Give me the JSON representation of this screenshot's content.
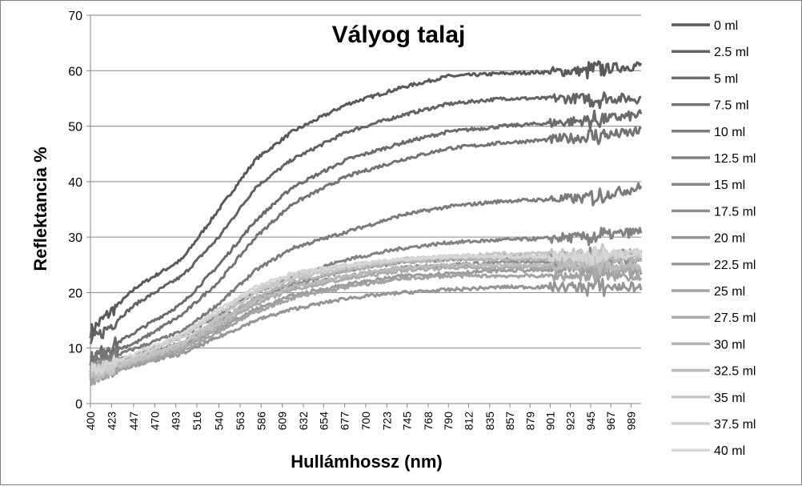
{
  "chart_data": {
    "type": "line",
    "title": "Vályog talaj",
    "xlabel": "Hullámhossz (nm)",
    "ylabel": "Reflektancia %",
    "ylim": [
      0,
      70
    ],
    "yticks": [
      0,
      10,
      20,
      30,
      40,
      50,
      60,
      70
    ],
    "xlim": [
      400,
      1000
    ],
    "xticks": [
      400,
      423,
      447,
      470,
      493,
      516,
      540,
      563,
      586,
      609,
      632,
      654,
      677,
      700,
      723,
      745,
      768,
      790,
      812,
      835,
      857,
      879,
      901,
      923,
      945,
      967,
      989
    ],
    "grid": "horizontal",
    "legend_position": "right",
    "series": [
      {
        "name": "0 ml",
        "color": "#595959",
        "x": [
          400,
          450,
          500,
          540,
          580,
          620,
          680,
          740,
          790,
          850,
          940,
          1000
        ],
        "y": [
          13,
          21,
          26,
          35,
          44,
          49,
          54,
          57,
          59,
          59.5,
          60,
          61
        ]
      },
      {
        "name": "2.5 ml",
        "color": "#636363",
        "x": [
          400,
          450,
          500,
          540,
          580,
          620,
          680,
          740,
          790,
          850,
          940,
          1000
        ],
        "y": [
          11,
          18,
          23,
          30,
          39,
          44,
          49,
          52,
          54,
          55,
          55,
          55
        ]
      },
      {
        "name": "5 ml",
        "color": "#6b6b6b",
        "x": [
          400,
          450,
          500,
          540,
          580,
          620,
          680,
          740,
          790,
          850,
          940,
          1000
        ],
        "y": [
          8,
          13,
          18,
          25,
          33,
          39,
          44,
          47,
          49,
          50,
          51,
          52
        ]
      },
      {
        "name": "7.5 ml",
        "color": "#737373",
        "x": [
          400,
          450,
          500,
          540,
          580,
          620,
          680,
          740,
          790,
          850,
          940,
          1000
        ],
        "y": [
          8,
          11,
          16,
          22,
          30,
          36,
          41,
          44,
          46,
          47,
          48,
          49
        ]
      },
      {
        "name": "10 ml",
        "color": "#7b7b7b",
        "x": [
          400,
          450,
          500,
          540,
          580,
          620,
          680,
          740,
          790,
          850,
          940,
          1000
        ],
        "y": [
          7,
          10,
          13,
          18,
          24,
          28,
          31,
          34,
          35.5,
          36.5,
          37,
          39
        ]
      },
      {
        "name": "12.5 ml",
        "color": "#828282",
        "x": [
          400,
          450,
          500,
          540,
          580,
          620,
          680,
          740,
          790,
          850,
          940,
          1000
        ],
        "y": [
          6,
          9,
          12,
          16,
          20,
          23,
          26,
          28,
          29,
          29.5,
          30,
          31
        ]
      },
      {
        "name": "15 ml",
        "color": "#888888",
        "x": [
          400,
          450,
          500,
          540,
          580,
          620,
          680,
          740,
          790,
          850,
          940,
          1000
        ],
        "y": [
          6,
          8.5,
          11,
          15,
          19,
          21.5,
          24,
          25.5,
          26,
          26.5,
          26.5,
          27
        ]
      },
      {
        "name": "17.5 ml",
        "color": "#8e8e8e",
        "x": [
          400,
          450,
          500,
          540,
          580,
          620,
          680,
          740,
          790,
          850,
          940,
          1000
        ],
        "y": [
          5.5,
          8,
          10.5,
          14.5,
          18.5,
          21,
          23,
          24.5,
          25,
          25.5,
          25.5,
          26
        ]
      },
      {
        "name": "20 ml",
        "color": "#949494",
        "x": [
          400,
          450,
          500,
          540,
          580,
          620,
          680,
          740,
          790,
          850,
          940,
          1000
        ],
        "y": [
          5,
          7,
          9,
          12,
          15,
          17,
          19,
          20,
          20.5,
          21,
          21,
          21
        ]
      },
      {
        "name": "22.5 ml",
        "color": "#9b9b9b",
        "x": [
          400,
          450,
          500,
          540,
          580,
          620,
          680,
          740,
          790,
          850,
          940,
          1000
        ],
        "y": [
          5,
          7.5,
          10,
          13.5,
          17,
          19.5,
          21.5,
          23,
          23.5,
          24,
          24,
          24
        ]
      },
      {
        "name": "25 ml",
        "color": "#a3a3a3",
        "x": [
          400,
          450,
          500,
          540,
          580,
          620,
          680,
          740,
          790,
          850,
          940,
          1000
        ],
        "y": [
          4.5,
          7,
          9.5,
          13,
          16.5,
          19,
          21,
          22.5,
          23,
          23,
          23,
          23
        ]
      },
      {
        "name": "27.5 ml",
        "color": "#ababab",
        "x": [
          400,
          450,
          500,
          540,
          580,
          620,
          680,
          740,
          790,
          850,
          940,
          1000
        ],
        "y": [
          5,
          7.5,
          10,
          14,
          18,
          20.5,
          22.5,
          24,
          24.5,
          24.5,
          24.5,
          24.5
        ]
      },
      {
        "name": "30 ml",
        "color": "#b3b3b3",
        "x": [
          400,
          450,
          500,
          540,
          580,
          620,
          680,
          740,
          790,
          850,
          940,
          1000
        ],
        "y": [
          5.5,
          8,
          11,
          15,
          19,
          22,
          24,
          25.5,
          26,
          26,
          26,
          26
        ]
      },
      {
        "name": "32.5 ml",
        "color": "#bbbbbb",
        "x": [
          400,
          450,
          500,
          540,
          580,
          620,
          680,
          740,
          790,
          850,
          940,
          1000
        ],
        "y": [
          5,
          7.5,
          10.5,
          14.5,
          18.5,
          21,
          23,
          24.5,
          25,
          25,
          25,
          25
        ]
      },
      {
        "name": "35 ml",
        "color": "#c4c4c4",
        "x": [
          400,
          450,
          500,
          540,
          580,
          620,
          680,
          740,
          790,
          850,
          940,
          1000
        ],
        "y": [
          5,
          8,
          11,
          15.5,
          20,
          22.5,
          24.5,
          26,
          26.5,
          27,
          27,
          27
        ]
      },
      {
        "name": "37.5 ml",
        "color": "#cdcdcd",
        "x": [
          400,
          450,
          500,
          540,
          580,
          620,
          680,
          740,
          790,
          850,
          940,
          1000
        ],
        "y": [
          6,
          8.5,
          12,
          16.5,
          20.5,
          23,
          25,
          26,
          26.5,
          26.5,
          26.5,
          27
        ]
      },
      {
        "name": "40 ml",
        "color": "#d6d6d6",
        "x": [
          400,
          450,
          500,
          540,
          580,
          620,
          680,
          740,
          790,
          850,
          940,
          1000
        ],
        "y": [
          6,
          9,
          12.5,
          17,
          21,
          23.5,
          25,
          26,
          26.5,
          26.5,
          26.5,
          27
        ]
      }
    ]
  }
}
